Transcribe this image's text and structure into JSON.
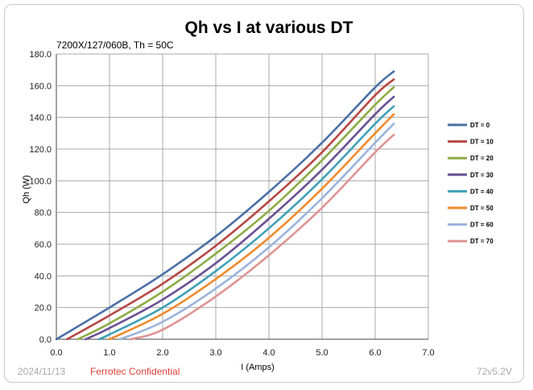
{
  "chart_data": {
    "type": "line",
    "title": "Qh vs I at various DT",
    "subtitle": "7200X/127/060B, Th = 50C",
    "xlabel": "I (Amps)",
    "ylabel": "Qh (W)",
    "xlim": [
      0.0,
      7.0
    ],
    "ylim": [
      0.0,
      180.0
    ],
    "xticks": [
      "0.0",
      "1.0",
      "2.0",
      "3.0",
      "4.0",
      "5.0",
      "6.0",
      "7.0"
    ],
    "yticks": [
      "0.0",
      "20.0",
      "40.0",
      "60.0",
      "80.0",
      "100.0",
      "120.0",
      "140.0",
      "160.0",
      "180.0"
    ],
    "grid": true,
    "legend_position": "right",
    "series": [
      {
        "name": "DT = 0",
        "color": "#4a6fa5",
        "points": [
          [
            0.0,
            0
          ],
          [
            1.0,
            20
          ],
          [
            2.0,
            41
          ],
          [
            3.0,
            65
          ],
          [
            4.0,
            93
          ],
          [
            5.0,
            124
          ],
          [
            6.0,
            159
          ],
          [
            6.35,
            169
          ]
        ]
      },
      {
        "name": "DT = 10",
        "color": "#b64744",
        "points": [
          [
            0.2,
            0
          ],
          [
            1.0,
            15
          ],
          [
            2.0,
            35
          ],
          [
            3.0,
            59
          ],
          [
            4.0,
            87
          ],
          [
            5.0,
            118
          ],
          [
            6.0,
            154
          ],
          [
            6.35,
            164
          ]
        ]
      },
      {
        "name": "DT = 20",
        "color": "#8cac45",
        "points": [
          [
            0.4,
            0
          ],
          [
            1.0,
            10
          ],
          [
            2.0,
            30
          ],
          [
            3.0,
            54
          ],
          [
            4.0,
            81
          ],
          [
            5.0,
            113
          ],
          [
            6.0,
            148
          ],
          [
            6.35,
            159
          ]
        ]
      },
      {
        "name": "DT = 30",
        "color": "#6a4f93",
        "points": [
          [
            0.55,
            0
          ],
          [
            1.0,
            7
          ],
          [
            2.0,
            25
          ],
          [
            3.0,
            48
          ],
          [
            4.0,
            76
          ],
          [
            5.0,
            107
          ],
          [
            6.0,
            142
          ],
          [
            6.35,
            153
          ]
        ]
      },
      {
        "name": "DT = 40",
        "color": "#3fa0b6",
        "points": [
          [
            0.8,
            0
          ],
          [
            1.0,
            3
          ],
          [
            2.0,
            20
          ],
          [
            3.0,
            43
          ],
          [
            4.0,
            70
          ],
          [
            5.0,
            101
          ],
          [
            6.0,
            136
          ],
          [
            6.35,
            147
          ]
        ]
      },
      {
        "name": "DT = 50",
        "color": "#f08a2e",
        "points": [
          [
            1.0,
            0
          ],
          [
            2.0,
            16
          ],
          [
            3.0,
            38
          ],
          [
            4.0,
            64
          ],
          [
            5.0,
            95
          ],
          [
            6.0,
            130
          ],
          [
            6.35,
            142
          ]
        ]
      },
      {
        "name": "DT = 60",
        "color": "#9bb3dc",
        "points": [
          [
            1.2,
            0
          ],
          [
            2.0,
            11
          ],
          [
            3.0,
            32
          ],
          [
            4.0,
            58
          ],
          [
            5.0,
            89
          ],
          [
            6.0,
            124
          ],
          [
            6.35,
            136
          ]
        ]
      },
      {
        "name": "DT = 70",
        "color": "#de9493",
        "points": [
          [
            1.4,
            0
          ],
          [
            2.0,
            6
          ],
          [
            3.0,
            27
          ],
          [
            4.0,
            53
          ],
          [
            5.0,
            83
          ],
          [
            6.0,
            118
          ],
          [
            6.35,
            129
          ]
        ]
      }
    ]
  },
  "footer": {
    "date": "2024/11/13",
    "confidential": "Ferrotec Confidential",
    "version": "72v5.2V"
  }
}
